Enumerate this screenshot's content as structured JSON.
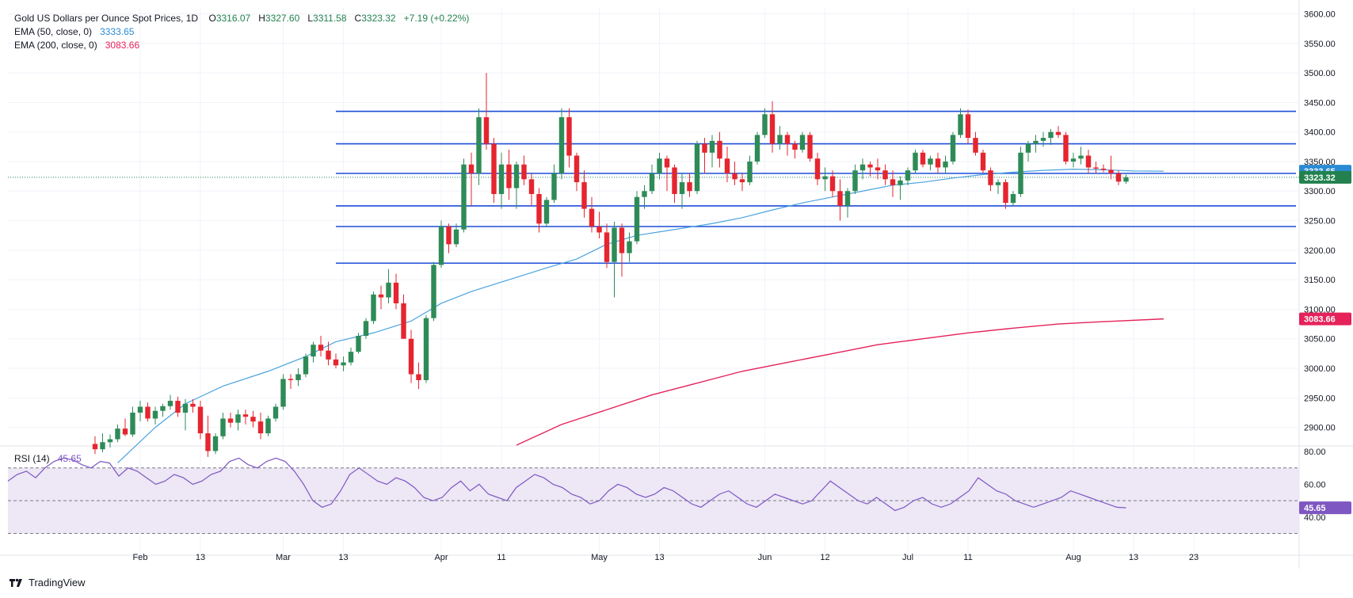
{
  "header": {
    "symbol_title": "Gold US Dollars per Ounce Spot Prices, 1D",
    "ohlc": {
      "o_label": "O",
      "o": "3316.07",
      "h_label": "H",
      "h": "3327.60",
      "l_label": "L",
      "l": "3311.58",
      "c_label": "C",
      "c": "3323.32",
      "change": "+7.19 (+0.22%)"
    },
    "ema50_label": "EMA (50, close, 0)",
    "ema50_value": "3333.65",
    "ema200_label": "EMA (200, close, 0)",
    "ema200_value": "3083.66"
  },
  "rsi_legend": {
    "label": "RSI (14)",
    "value": "45.65"
  },
  "footer": {
    "brand": "TradingView"
  },
  "colors": {
    "up": "#2e8b57",
    "down": "#e5252f",
    "ema50": "#4aa3df",
    "ema200": "#e5225a",
    "hline": "#1e4ed8",
    "rsi": "#7e57c2",
    "rsi_band": "#ede7f6",
    "price_tag": "#22814e"
  },
  "chart_data": [
    {
      "type": "candlestick",
      "title": "Gold US Dollars per Ounce Spot Prices, 1D",
      "y_axis_labels": [
        "3600.00",
        "3550.00",
        "3500.00",
        "3450.00",
        "3400.00",
        "3350.00",
        "3300.00",
        "3250.00",
        "3200.00",
        "3150.00",
        "3100.00",
        "3050.00",
        "3000.00",
        "2950.00",
        "2900.00"
      ],
      "ylim": [
        2870,
        3610
      ],
      "x_axis_labels": [
        {
          "label": "Feb",
          "x": 24
        },
        {
          "label": "13",
          "x": 32
        },
        {
          "label": "Mar",
          "x": 43
        },
        {
          "label": "13",
          "x": 51
        },
        {
          "label": "Apr",
          "x": 64
        },
        {
          "label": "11",
          "x": 72
        },
        {
          "label": "May",
          "x": 85
        },
        {
          "label": "13",
          "x": 93
        },
        {
          "label": "Jun",
          "x": 107
        },
        {
          "label": "12",
          "x": 115
        },
        {
          "label": "Jul",
          "x": 126
        },
        {
          "label": "11",
          "x": 134
        },
        {
          "label": "Aug",
          "x": 148
        },
        {
          "label": "13",
          "x": 156
        },
        {
          "label": "23",
          "x": 164
        }
      ],
      "horizontal_levels": [
        3435,
        3380,
        3330,
        3275,
        3240,
        3178
      ],
      "price_tags": [
        {
          "label": "3333.65",
          "value": 3333.65,
          "series": "ema50"
        },
        {
          "label": "3323.32",
          "value": 3323.32,
          "series": "price"
        },
        {
          "label": "3083.66",
          "value": 3083.66,
          "series": "ema200"
        }
      ],
      "ohlc": [
        [
          2872,
          2885,
          2855,
          2863
        ],
        [
          2863,
          2890,
          2858,
          2875
        ],
        [
          2875,
          2888,
          2866,
          2880
        ],
        [
          2880,
          2905,
          2875,
          2898
        ],
        [
          2898,
          2915,
          2885,
          2888
        ],
        [
          2888,
          2935,
          2884,
          2925
        ],
        [
          2925,
          2945,
          2910,
          2935
        ],
        [
          2935,
          2942,
          2910,
          2915
        ],
        [
          2915,
          2935,
          2905,
          2928
        ],
        [
          2928,
          2940,
          2918,
          2936
        ],
        [
          2936,
          2955,
          2930,
          2945
        ],
        [
          2945,
          2952,
          2918,
          2925
        ],
        [
          2925,
          2948,
          2895,
          2940
        ],
        [
          2940,
          2948,
          2925,
          2935
        ],
        [
          2935,
          2945,
          2880,
          2890
        ],
        [
          2890,
          2920,
          2850,
          2860
        ],
        [
          2860,
          2890,
          2855,
          2885
        ],
        [
          2885,
          2925,
          2880,
          2915
        ],
        [
          2915,
          2925,
          2900,
          2908
        ],
        [
          2908,
          2930,
          2895,
          2922
        ],
        [
          2922,
          2930,
          2905,
          2918
        ],
        [
          2918,
          2928,
          2900,
          2910
        ],
        [
          2910,
          2925,
          2880,
          2890
        ],
        [
          2890,
          2920,
          2885,
          2915
        ],
        [
          2915,
          2940,
          2910,
          2935
        ],
        [
          2935,
          2990,
          2930,
          2982
        ],
        [
          2982,
          2990,
          2965,
          2980
        ],
        [
          2980,
          3000,
          2970,
          2990
        ],
        [
          2990,
          3025,
          2985,
          3020
        ],
        [
          3020,
          3045,
          3010,
          3040
        ],
        [
          3040,
          3055,
          3020,
          3030
        ],
        [
          3030,
          3045,
          3005,
          3015
        ],
        [
          3015,
          3025,
          3000,
          3005
        ],
        [
          3005,
          3020,
          2995,
          3010
        ],
        [
          3010,
          3035,
          3005,
          3028
        ],
        [
          3028,
          3060,
          3025,
          3055
        ],
        [
          3055,
          3085,
          3050,
          3080
        ],
        [
          3080,
          3130,
          3075,
          3125
        ],
        [
          3125,
          3140,
          3100,
          3120
        ],
        [
          3120,
          3168,
          3110,
          3145
        ],
        [
          3145,
          3160,
          3100,
          3110
        ],
        [
          3110,
          3125,
          3055,
          3050
        ],
        [
          3050,
          3065,
          2975,
          2990
        ],
        [
          2990,
          3010,
          2965,
          2980
        ],
        [
          2980,
          3090,
          2975,
          3085
        ],
        [
          3085,
          3180,
          3080,
          3175
        ],
        [
          3175,
          3250,
          3170,
          3240
        ],
        [
          3240,
          3245,
          3195,
          3210
        ],
        [
          3210,
          3245,
          3205,
          3235
        ],
        [
          3235,
          3355,
          3230,
          3345
        ],
        [
          3345,
          3365,
          3275,
          3330
        ],
        [
          3330,
          3440,
          3310,
          3425
        ],
        [
          3425,
          3500,
          3370,
          3380
        ],
        [
          3380,
          3390,
          3280,
          3295
        ],
        [
          3295,
          3365,
          3270,
          3345
        ],
        [
          3345,
          3370,
          3285,
          3305
        ],
        [
          3305,
          3350,
          3270,
          3345
        ],
        [
          3345,
          3360,
          3310,
          3320
        ],
        [
          3320,
          3330,
          3275,
          3295
        ],
        [
          3295,
          3305,
          3230,
          3245
        ],
        [
          3245,
          3290,
          3240,
          3285
        ],
        [
          3285,
          3345,
          3280,
          3330
        ],
        [
          3330,
          3440,
          3320,
          3425
        ],
        [
          3425,
          3440,
          3340,
          3360
        ],
        [
          3360,
          3365,
          3300,
          3315
        ],
        [
          3315,
          3335,
          3255,
          3270
        ],
        [
          3270,
          3290,
          3230,
          3240
        ],
        [
          3240,
          3265,
          3220,
          3230
        ],
        [
          3230,
          3245,
          3170,
          3180
        ],
        [
          3180,
          3248,
          3120,
          3238
        ],
        [
          3238,
          3245,
          3155,
          3195
        ],
        [
          3195,
          3230,
          3180,
          3215
        ],
        [
          3215,
          3300,
          3210,
          3290
        ],
        [
          3290,
          3310,
          3270,
          3300
        ],
        [
          3300,
          3345,
          3295,
          3330
        ],
        [
          3330,
          3365,
          3320,
          3355
        ],
        [
          3355,
          3360,
          3300,
          3340
        ],
        [
          3340,
          3345,
          3280,
          3295
        ],
        [
          3295,
          3330,
          3270,
          3315
        ],
        [
          3315,
          3330,
          3290,
          3300
        ],
        [
          3300,
          3385,
          3295,
          3380
        ],
        [
          3380,
          3390,
          3330,
          3365
        ],
        [
          3365,
          3395,
          3340,
          3385
        ],
        [
          3385,
          3400,
          3340,
          3355
        ],
        [
          3355,
          3375,
          3315,
          3330
        ],
        [
          3330,
          3350,
          3310,
          3320
        ],
        [
          3320,
          3330,
          3300,
          3315
        ],
        [
          3315,
          3360,
          3310,
          3350
        ],
        [
          3350,
          3400,
          3345,
          3395
        ],
        [
          3395,
          3440,
          3390,
          3430
        ],
        [
          3430,
          3452,
          3365,
          3380
        ],
        [
          3380,
          3410,
          3370,
          3395
        ],
        [
          3395,
          3400,
          3360,
          3380
        ],
        [
          3380,
          3385,
          3355,
          3370
        ],
        [
          3370,
          3400,
          3365,
          3395
        ],
        [
          3395,
          3400,
          3350,
          3355
        ],
        [
          3355,
          3365,
          3310,
          3320
        ],
        [
          3320,
          3340,
          3300,
          3325
        ],
        [
          3325,
          3335,
          3290,
          3300
        ],
        [
          3300,
          3320,
          3250,
          3275
        ],
        [
          3275,
          3305,
          3255,
          3300
        ],
        [
          3300,
          3345,
          3295,
          3335
        ],
        [
          3335,
          3355,
          3320,
          3345
        ],
        [
          3345,
          3350,
          3325,
          3340
        ],
        [
          3340,
          3355,
          3320,
          3335
        ],
        [
          3335,
          3345,
          3310,
          3320
        ],
        [
          3320,
          3335,
          3290,
          3310
        ],
        [
          3310,
          3325,
          3285,
          3318
        ],
        [
          3318,
          3340,
          3310,
          3335
        ],
        [
          3335,
          3370,
          3330,
          3365
        ],
        [
          3365,
          3370,
          3340,
          3345
        ],
        [
          3345,
          3360,
          3335,
          3355
        ],
        [
          3355,
          3365,
          3330,
          3340
        ],
        [
          3340,
          3360,
          3330,
          3350
        ],
        [
          3350,
          3400,
          3345,
          3395
        ],
        [
          3395,
          3440,
          3390,
          3430
        ],
        [
          3430,
          3438,
          3380,
          3390
        ],
        [
          3390,
          3400,
          3360,
          3365
        ],
        [
          3365,
          3370,
          3330,
          3335
        ],
        [
          3335,
          3340,
          3300,
          3310
        ],
        [
          3310,
          3320,
          3295,
          3315
        ],
        [
          3315,
          3320,
          3270,
          3280
        ],
        [
          3280,
          3300,
          3275,
          3295
        ],
        [
          3295,
          3375,
          3290,
          3365
        ],
        [
          3365,
          3385,
          3350,
          3380
        ],
        [
          3380,
          3395,
          3365,
          3385
        ],
        [
          3385,
          3400,
          3375,
          3390
        ],
        [
          3390,
          3405,
          3378,
          3400
        ],
        [
          3400,
          3410,
          3390,
          3395
        ],
        [
          3395,
          3400,
          3345,
          3350
        ],
        [
          3350,
          3365,
          3340,
          3355
        ],
        [
          3355,
          3375,
          3345,
          3360
        ],
        [
          3360,
          3370,
          3330,
          3340
        ],
        [
          3340,
          3350,
          3330,
          3338
        ],
        [
          3338,
          3345,
          3332,
          3336
        ],
        [
          3336,
          3360,
          3320,
          3330
        ],
        [
          3330,
          3335,
          3310,
          3316
        ],
        [
          3316,
          3328,
          3312,
          3323
        ]
      ],
      "ema50_series": [
        [
          21,
          2840
        ],
        [
          26,
          2900
        ],
        [
          30,
          2940
        ],
        [
          35,
          2970
        ],
        [
          41,
          2995
        ],
        [
          46,
          3020
        ],
        [
          50,
          3045
        ],
        [
          55,
          3060
        ],
        [
          60,
          3080
        ],
        [
          64,
          3110
        ],
        [
          68,
          3130
        ],
        [
          73,
          3150
        ],
        [
          78,
          3170
        ],
        [
          82,
          3185
        ],
        [
          86,
          3210
        ],
        [
          90,
          3225
        ],
        [
          95,
          3235
        ],
        [
          100,
          3245
        ],
        [
          104,
          3255
        ],
        [
          108,
          3268
        ],
        [
          112,
          3280
        ],
        [
          116,
          3290
        ],
        [
          120,
          3300
        ],
        [
          124,
          3310
        ],
        [
          128,
          3315
        ],
        [
          132,
          3322
        ],
        [
          136,
          3328
        ],
        [
          140,
          3332
        ],
        [
          144,
          3335
        ],
        [
          148,
          3337
        ],
        [
          152,
          3336
        ],
        [
          156,
          3334
        ],
        [
          160,
          3333.65
        ]
      ],
      "ema200_series": [
        [
          74,
          2870
        ],
        [
          80,
          2905
        ],
        [
          86,
          2930
        ],
        [
          92,
          2955
        ],
        [
          98,
          2975
        ],
        [
          104,
          2995
        ],
        [
          110,
          3010
        ],
        [
          116,
          3025
        ],
        [
          122,
          3040
        ],
        [
          128,
          3050
        ],
        [
          134,
          3060
        ],
        [
          140,
          3068
        ],
        [
          146,
          3075
        ],
        [
          152,
          3079
        ],
        [
          160,
          3083.66
        ]
      ]
    },
    {
      "type": "line",
      "title": "RSI (14)",
      "y_axis_labels": [
        "80.00",
        "60.00",
        "40.00"
      ],
      "ylim": [
        22,
        82
      ],
      "bands": [
        30,
        50,
        70
      ],
      "values": [
        62,
        66,
        68,
        64,
        70,
        74,
        76,
        75,
        72,
        70,
        74,
        73,
        65,
        70,
        68,
        64,
        60,
        62,
        66,
        64,
        60,
        62,
        66,
        68,
        74,
        76,
        72,
        70,
        74,
        76,
        74,
        68,
        60,
        50,
        46,
        48,
        56,
        66,
        70,
        66,
        62,
        60,
        64,
        62,
        58,
        52,
        50,
        52,
        58,
        62,
        56,
        60,
        54,
        52,
        50,
        58,
        62,
        66,
        64,
        60,
        58,
        54,
        52,
        48,
        50,
        56,
        60,
        58,
        54,
        52,
        54,
        58,
        56,
        52,
        48,
        46,
        50,
        54,
        56,
        52,
        48,
        46,
        50,
        54,
        52,
        50,
        48,
        50,
        56,
        62,
        58,
        54,
        50,
        48,
        52,
        48,
        44,
        46,
        50,
        52,
        48,
        46,
        48,
        52,
        56,
        64,
        60,
        56,
        54,
        50,
        48,
        46,
        48,
        50,
        52,
        56,
        54,
        52,
        50,
        48,
        46,
        45.65
      ]
    }
  ]
}
